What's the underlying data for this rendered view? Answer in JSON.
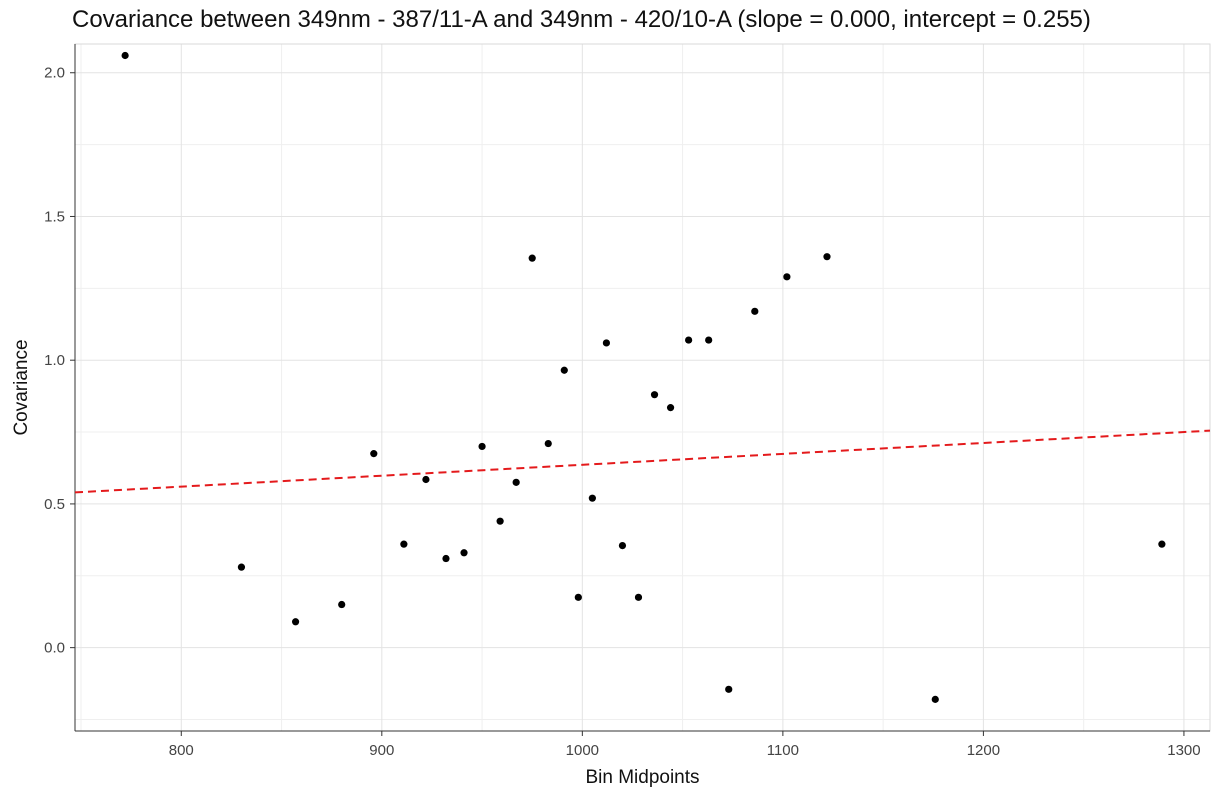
{
  "chart_data": {
    "type": "scatter",
    "title": "Covariance between 349nm - 387/11-A and 349nm - 420/10-A (slope = 0.000, intercept = 0.255)",
    "xlabel": "Bin Midpoints",
    "ylabel": "Covariance",
    "xlim": [
      747,
      1313
    ],
    "ylim": [
      -0.29,
      2.1
    ],
    "x_ticks": [
      800,
      900,
      1000,
      1100,
      1200,
      1300
    ],
    "y_ticks": [
      0.0,
      0.5,
      1.0,
      1.5,
      2.0
    ],
    "x_tick_labels": [
      "800",
      "900",
      "1000",
      "1100",
      "1200",
      "1300"
    ],
    "y_tick_labels": [
      "0.0",
      "0.5",
      "1.0",
      "1.5",
      "2.0"
    ],
    "grid": true,
    "points": [
      {
        "x": 772,
        "y": 2.06
      },
      {
        "x": 830,
        "y": 0.28
      },
      {
        "x": 857,
        "y": 0.09
      },
      {
        "x": 880,
        "y": 0.15
      },
      {
        "x": 896,
        "y": 0.675
      },
      {
        "x": 911,
        "y": 0.36
      },
      {
        "x": 922,
        "y": 0.585
      },
      {
        "x": 932,
        "y": 0.31
      },
      {
        "x": 941,
        "y": 0.33
      },
      {
        "x": 950,
        "y": 0.7
      },
      {
        "x": 959,
        "y": 0.44
      },
      {
        "x": 967,
        "y": 0.575
      },
      {
        "x": 975,
        "y": 1.355
      },
      {
        "x": 983,
        "y": 0.71
      },
      {
        "x": 991,
        "y": 0.965
      },
      {
        "x": 998,
        "y": 0.175
      },
      {
        "x": 1005,
        "y": 0.52
      },
      {
        "x": 1012,
        "y": 1.06
      },
      {
        "x": 1020,
        "y": 0.355
      },
      {
        "x": 1028,
        "y": 0.175
      },
      {
        "x": 1036,
        "y": 0.88
      },
      {
        "x": 1044,
        "y": 0.835
      },
      {
        "x": 1053,
        "y": 1.07
      },
      {
        "x": 1063,
        "y": 1.07
      },
      {
        "x": 1073,
        "y": -0.145
      },
      {
        "x": 1086,
        "y": 1.17
      },
      {
        "x": 1102,
        "y": 1.29
      },
      {
        "x": 1122,
        "y": 1.36
      },
      {
        "x": 1176,
        "y": -0.18
      },
      {
        "x": 1289,
        "y": 0.36
      }
    ],
    "trend_line": {
      "x": [
        747,
        1313
      ],
      "y": [
        0.54,
        0.755
      ],
      "color": "#e41a1c",
      "style": "dashed"
    },
    "colors": {
      "points": "#000000",
      "grid": "#e3e3e3",
      "trend": "#e41a1c"
    }
  }
}
